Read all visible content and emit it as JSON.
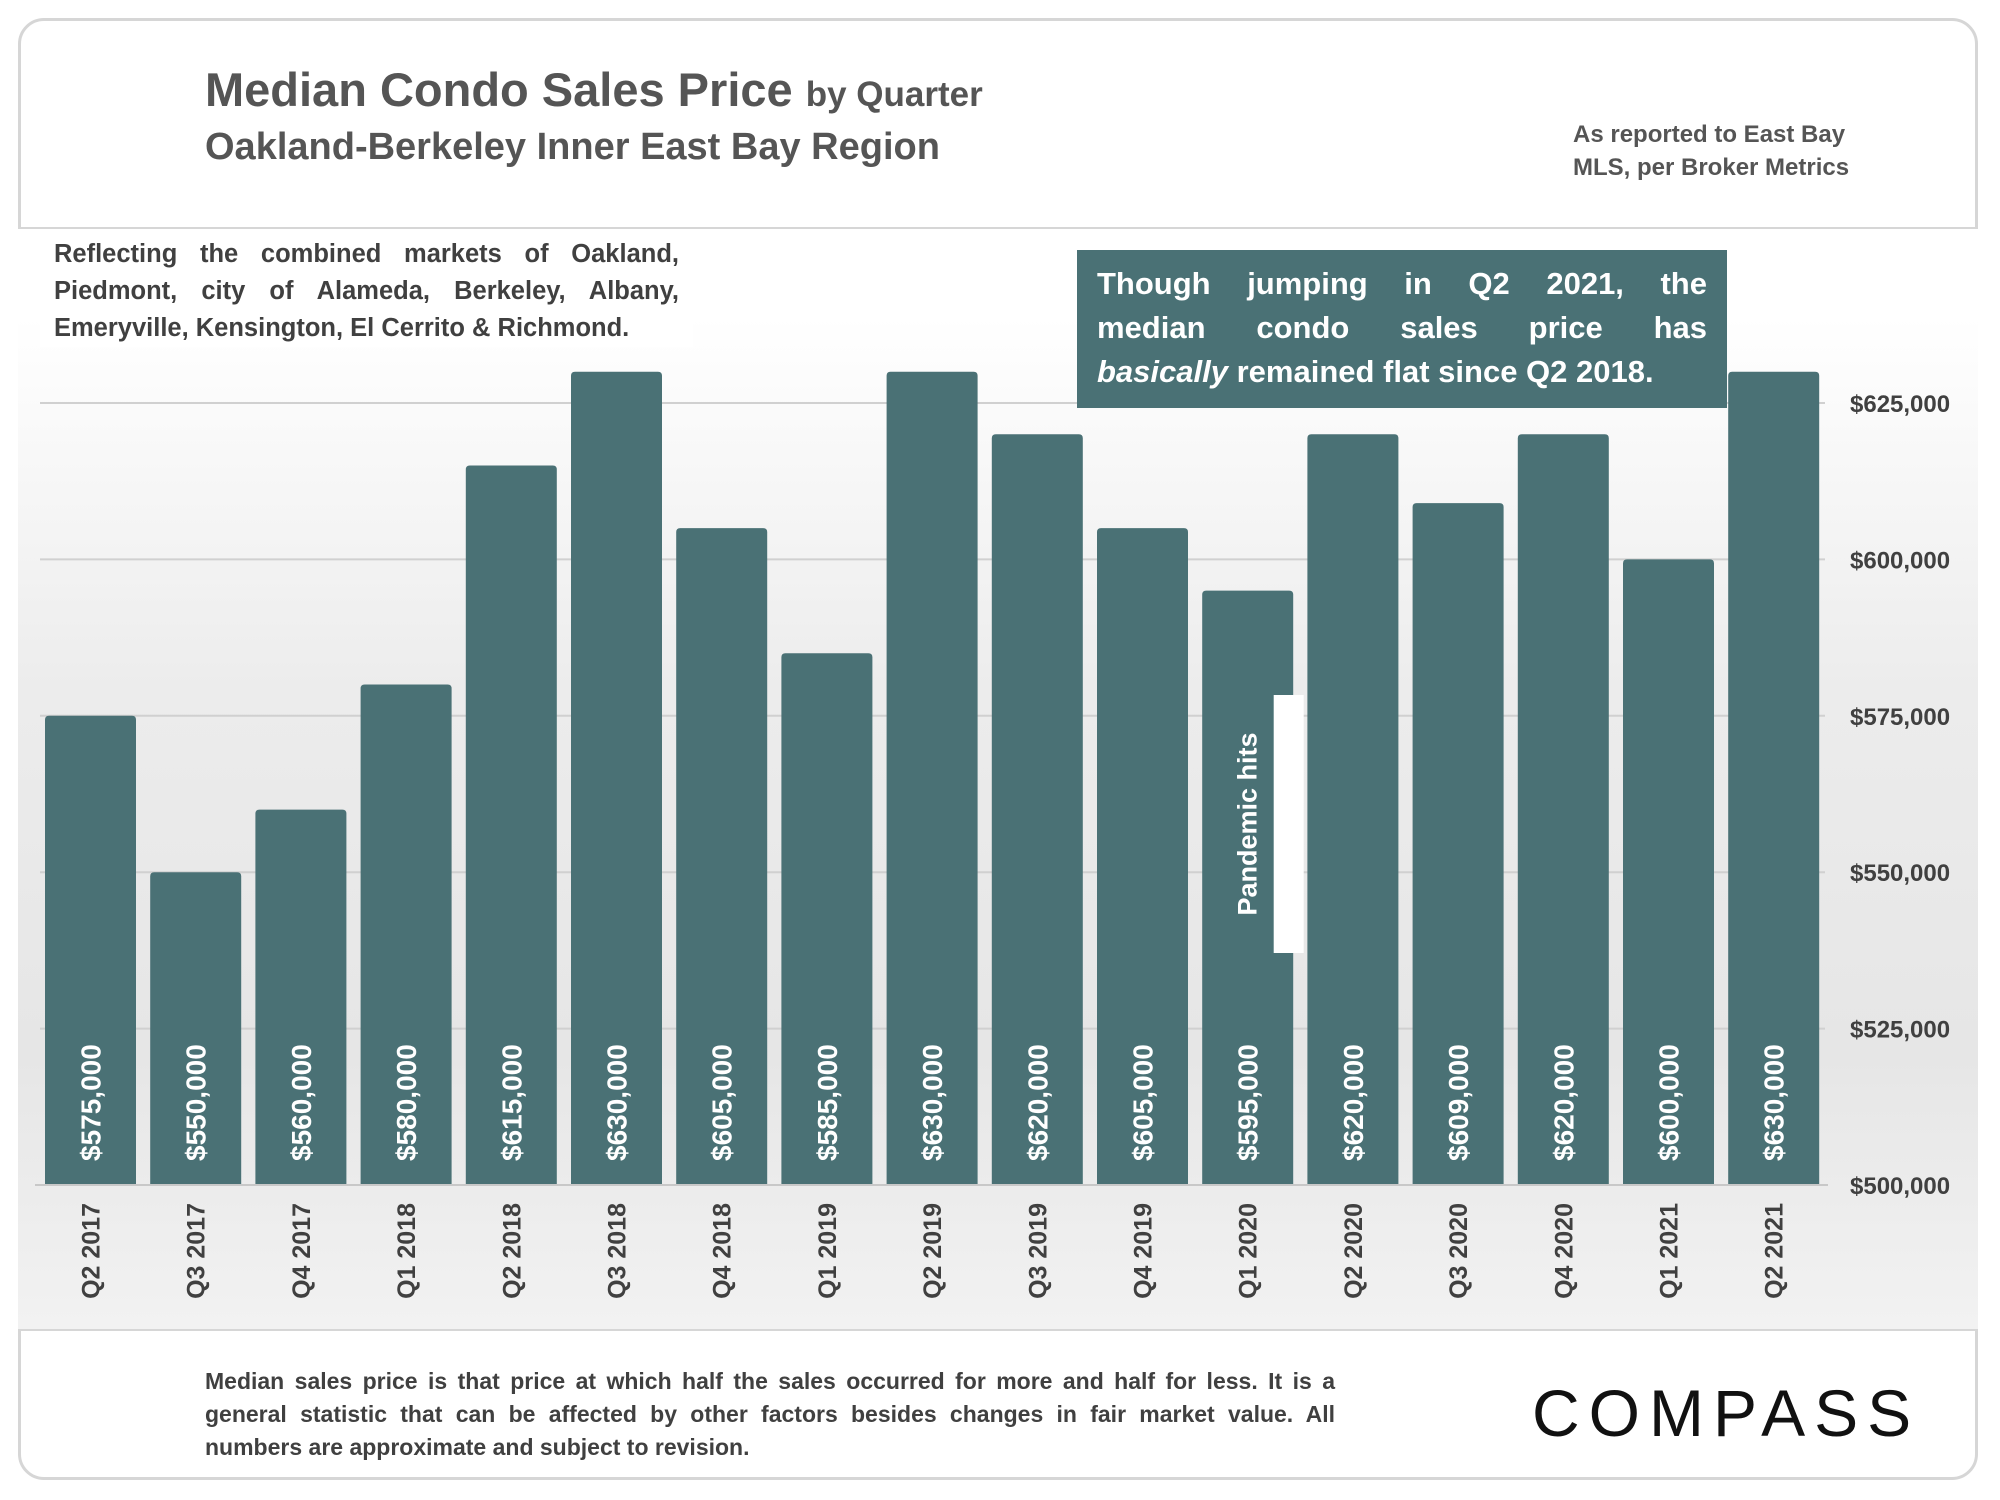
{
  "header": {
    "title_main": "Median Condo Sales Price",
    "title_suffix": "by Quarter",
    "subtitle": "Oakland-Berkeley Inner East Bay Region",
    "source_line1": "As reported to East Bay",
    "source_line2": "MLS, per Broker Metrics"
  },
  "notes": {
    "reflecting": "Reflecting the combined markets of Oakland, Piedmont, city of Alameda, Berkeley, Albany, Emeryville, Kensington, El Cerrito & Richmond.",
    "callout_line1": "Though jumping in Q2 2021, the",
    "callout_line2": "median condo sales price has",
    "callout_emph": "basically",
    "callout_line3_rest": "remained flat since Q2 2018.",
    "footnote": "Median sales price is that price at which half the sales occurred for more and half for less. It is a general statistic that can be affected by other factors besides changes in fair market value. All numbers are approximate and subject to revision."
  },
  "logo_text": "COMPASS",
  "colors": {
    "bar": "#4a7175",
    "grid": "#d0d0d0",
    "text": "#404040"
  },
  "chart_data": {
    "type": "bar",
    "title": "Median Condo Sales Price by Quarter",
    "subtitle": "Oakland-Berkeley Inner East Bay Region",
    "categories": [
      "Q2 2017",
      "Q3 2017",
      "Q4 2017",
      "Q1 2018",
      "Q2 2018",
      "Q3 2018",
      "Q4 2018",
      "Q1 2019",
      "Q2 2019",
      "Q3 2019",
      "Q4 2019",
      "Q1 2020",
      "Q2 2020",
      "Q3 2020",
      "Q4 2020",
      "Q1 2021",
      "Q2 2021"
    ],
    "values": [
      575000,
      550000,
      560000,
      580000,
      615000,
      630000,
      605000,
      585000,
      630000,
      620000,
      605000,
      595000,
      620000,
      609000,
      620000,
      600000,
      630000
    ],
    "data_labels": [
      "$575,000",
      "$550,000",
      "$560,000",
      "$580,000",
      "$615,000",
      "$630,000",
      "$605,000",
      "$585,000",
      "$630,000",
      "$620,000",
      "$605,000",
      "$595,000",
      "$620,000",
      "$609,000",
      "$620,000",
      "$600,000",
      "$630,000"
    ],
    "ylim": [
      500000,
      625000
    ],
    "y_ticks": [
      500000,
      525000,
      550000,
      575000,
      600000,
      625000
    ],
    "y_tick_labels": [
      "$500,000",
      "$525,000",
      "$550,000",
      "$575,000",
      "$600,000",
      "$625,000"
    ],
    "y_axis_position": "right",
    "grid": true,
    "legend": "none",
    "annotations": [
      {
        "text": "Pandemic hits",
        "category": "Q1 2020"
      }
    ]
  }
}
